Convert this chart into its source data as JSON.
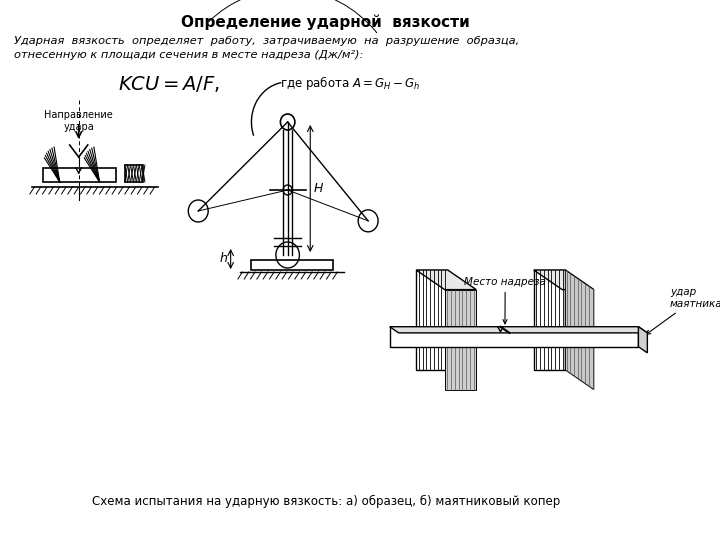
{
  "title": "Определение ударной  вязкости",
  "title_fontsize": 11,
  "bg_color": "#ffffff",
  "text_color": "#000000",
  "body_text_line1": "Ударная  вязкость  определяет  работу,  затрачиваемую  на  разрушение  образца,",
  "body_text_line2": "отнесенную к площади сечения в месте надреза (Дж/м²):",
  "caption": "Схема испытания на ударную вязкость: а) образец, б) маятниковый копер",
  "label_direction": "Направление\nудара",
  "label_notch": "Место надреза",
  "label_pendulum": "удар\nмаятника",
  "label_H": "H",
  "label_h": "h"
}
